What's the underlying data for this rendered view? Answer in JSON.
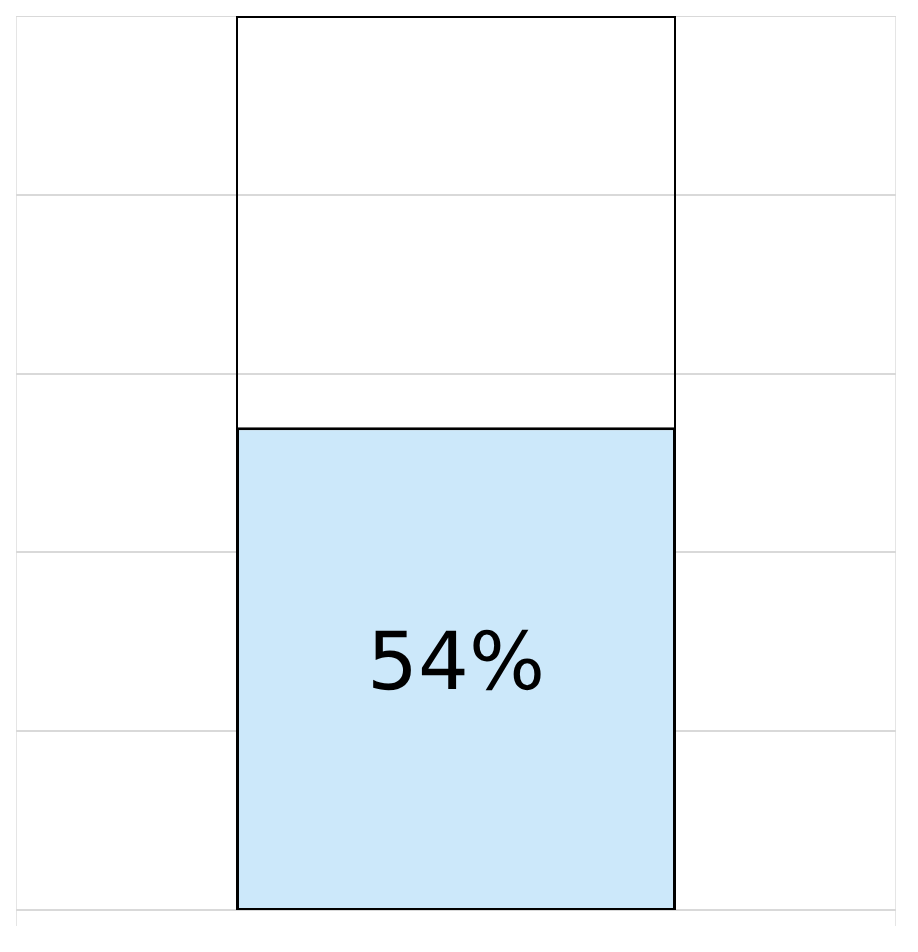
{
  "chart_data": {
    "type": "bar",
    "categories": [
      null
    ],
    "series": [
      {
        "color": "#cce8fa",
        "values": [
          54
        ],
        "value_labels": [
          "54%"
        ]
      }
    ],
    "ylim": [
      0,
      100
    ],
    "grid": true,
    "tick_labels": false,
    "legend": false
  }
}
